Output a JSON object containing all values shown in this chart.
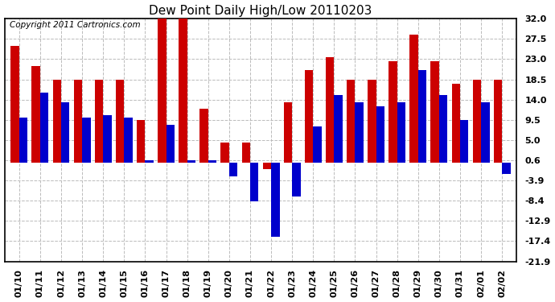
{
  "title": "Dew Point Daily High/Low 20110203",
  "copyright": "Copyright 2011 Cartronics.com",
  "dates": [
    "01/10",
    "01/11",
    "01/12",
    "01/13",
    "01/14",
    "01/15",
    "01/16",
    "01/17",
    "01/18",
    "01/19",
    "01/20",
    "01/21",
    "01/22",
    "01/23",
    "01/24",
    "01/25",
    "01/26",
    "01/27",
    "01/28",
    "01/29",
    "01/30",
    "01/31",
    "02/01",
    "02/02"
  ],
  "high": [
    26.0,
    21.5,
    18.5,
    18.5,
    18.5,
    18.5,
    9.5,
    32.0,
    32.0,
    12.0,
    4.5,
    4.5,
    -1.5,
    13.5,
    20.5,
    23.5,
    18.5,
    18.5,
    22.5,
    28.5,
    22.5,
    17.5,
    18.5,
    18.5
  ],
  "low": [
    10.0,
    15.5,
    13.5,
    10.0,
    10.5,
    10.0,
    0.6,
    8.5,
    0.6,
    0.6,
    -3.0,
    -8.5,
    -16.5,
    -7.5,
    8.0,
    15.0,
    13.5,
    12.5,
    13.5,
    20.5,
    15.0,
    9.5,
    13.5,
    -2.5
  ],
  "bar_color_high": "#cc0000",
  "bar_color_low": "#0000cc",
  "background_color": "#ffffff",
  "plot_bg_color": "#ffffff",
  "grid_color": "#bbbbbb",
  "ylim_min": -21.9,
  "ylim_max": 32.0,
  "yticks": [
    32.0,
    27.5,
    23.0,
    18.5,
    14.0,
    9.5,
    5.0,
    0.6,
    -3.9,
    -8.4,
    -12.9,
    -17.4,
    -21.9
  ],
  "title_fontsize": 11,
  "tick_fontsize": 8,
  "copyright_fontsize": 7.5
}
